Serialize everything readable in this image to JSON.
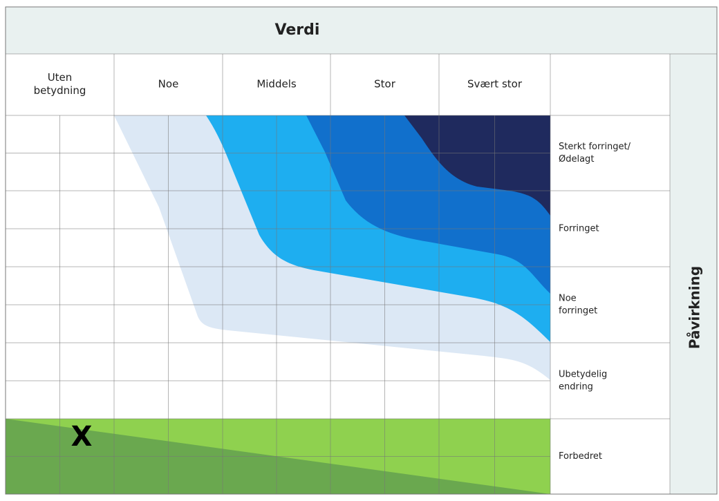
{
  "header": {
    "title": "Verdi"
  },
  "columns": [
    [
      "Uten",
      "betydning"
    ],
    [
      "Noe"
    ],
    [
      "Middels"
    ],
    [
      "Stor"
    ],
    [
      "Svært stor"
    ]
  ],
  "rows": [
    [
      "Sterkt forringet/",
      "Ødelagt"
    ],
    [
      "Forringet"
    ],
    [
      "Noe",
      "forringet"
    ],
    [
      "Ubetydelig",
      "endring"
    ],
    [
      "Forbedret"
    ]
  ],
  "side_label": "Påvirkning",
  "marker": "X"
}
